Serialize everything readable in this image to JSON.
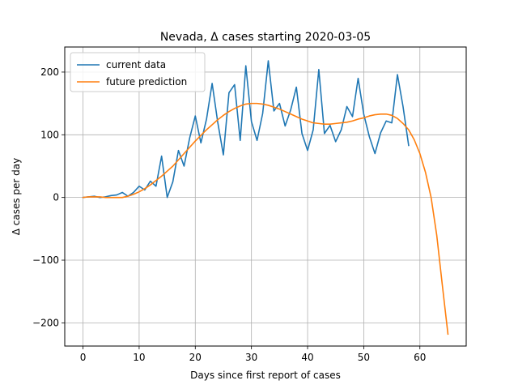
{
  "chart_data": {
    "type": "line",
    "title": "Nevada, Δ cases starting 2020-03-05",
    "xlabel": "Days since first report of cases",
    "ylabel": "Δ cases per day",
    "xlim": [
      -3.25,
      68.25
    ],
    "ylim": [
      -237,
      240
    ],
    "xticks": [
      0,
      10,
      20,
      30,
      40,
      50,
      60
    ],
    "yticks": [
      -200,
      -100,
      0,
      100,
      200
    ],
    "grid": true,
    "legend_position": "upper-left",
    "series": [
      {
        "name": "current data",
        "color": "#1f77b4",
        "x": [
          0,
          1,
          2,
          3,
          4,
          5,
          6,
          7,
          8,
          9,
          10,
          11,
          12,
          13,
          14,
          15,
          16,
          17,
          18,
          19,
          20,
          21,
          22,
          23,
          24,
          25,
          26,
          27,
          28,
          29,
          30,
          31,
          32,
          33,
          34,
          35,
          36,
          37,
          38,
          39,
          40,
          41,
          42,
          43,
          44,
          45,
          46,
          47,
          48,
          49,
          50,
          51,
          52,
          53,
          54,
          55,
          56,
          57,
          58
        ],
        "y": [
          0,
          1,
          2,
          0,
          1,
          3,
          4,
          8,
          2,
          8,
          18,
          12,
          26,
          18,
          66,
          0,
          25,
          75,
          50,
          95,
          130,
          87,
          125,
          182,
          120,
          68,
          167,
          180,
          91,
          210,
          121,
          91,
          134,
          218,
          138,
          150,
          114,
          140,
          176,
          102,
          75,
          108,
          204,
          102,
          115,
          89,
          108,
          145,
          129,
          190,
          133,
          97,
          70,
          103,
          122,
          119,
          196,
          145,
          83
        ]
      },
      {
        "name": "future prediction",
        "color": "#ff7f0e",
        "x": [
          0,
          1,
          2,
          3,
          4,
          5,
          6,
          7,
          8,
          9,
          10,
          11,
          12,
          13,
          14,
          15,
          16,
          17,
          18,
          19,
          20,
          21,
          22,
          23,
          24,
          25,
          26,
          27,
          28,
          29,
          30,
          31,
          32,
          33,
          34,
          35,
          36,
          37,
          38,
          39,
          40,
          41,
          42,
          43,
          44,
          45,
          46,
          47,
          48,
          49,
          50,
          51,
          52,
          53,
          54,
          55,
          56,
          57,
          58,
          59,
          60,
          61,
          62,
          63,
          64,
          65
        ],
        "y": [
          0,
          1,
          1,
          1,
          0,
          0,
          0,
          0,
          2,
          5,
          9,
          14,
          20,
          27,
          34,
          42,
          50,
          60,
          70,
          80,
          90,
          99,
          108,
          116,
          124,
          131,
          137,
          142,
          146,
          149,
          150,
          150,
          149,
          147,
          144,
          141,
          137,
          133,
          129,
          125,
          122,
          119,
          118,
          117,
          117,
          118,
          119,
          120,
          122,
          125,
          127,
          130,
          132,
          133,
          133,
          131,
          126,
          118,
          108,
          92,
          70,
          40,
          0,
          -60,
          -140,
          -218
        ]
      }
    ]
  }
}
